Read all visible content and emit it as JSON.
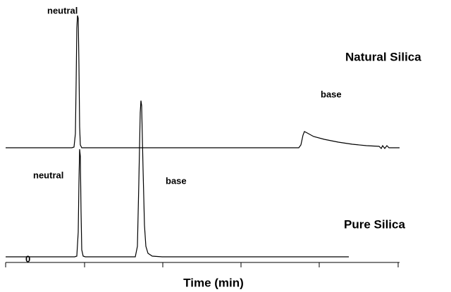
{
  "chart_data": {
    "type": "line",
    "xlabel": "Time (min)",
    "origin_label": "0",
    "traces": [
      {
        "name": "Natural Silica",
        "peak_labels": [
          "neutral",
          "base"
        ]
      },
      {
        "name": "Pure Silica",
        "peak_labels": [
          "neutral",
          "base"
        ]
      }
    ]
  }
}
